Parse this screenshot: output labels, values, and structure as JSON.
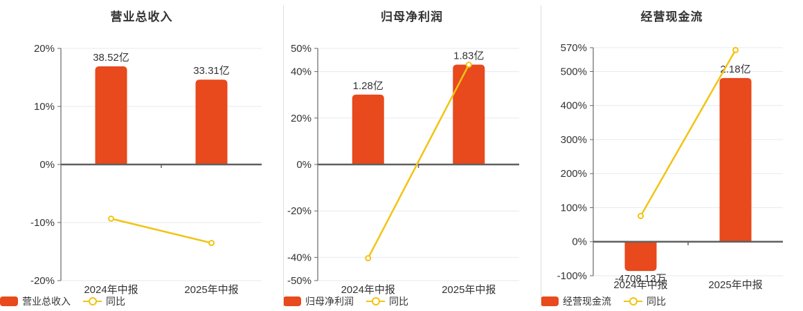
{
  "colors": {
    "bg": "#ffffff",
    "bar": "#e8491d",
    "line": "#f2c311",
    "grid": "#e6e9f1",
    "axis": "#666666",
    "zero_axis": "#5f5f5f",
    "text": "#333333",
    "divider": "#dddddd"
  },
  "chart_data": [
    {
      "type": "combo-bar-line",
      "title": "营业总收入",
      "categories": [
        "2024年中报",
        "2025年中报"
      ],
      "series": [
        {
          "name": "营业总收入",
          "type": "bar",
          "unit": "亿",
          "values": [
            38.52,
            33.31
          ],
          "value_labels": [
            "38.52亿",
            "33.31亿"
          ],
          "display_axis_pct": [
            16.9,
            14.62
          ],
          "label_position": [
            "above",
            "above"
          ]
        },
        {
          "name": "同比",
          "type": "line",
          "unit": "%",
          "values": [
            -9.33,
            -13.52
          ]
        }
      ],
      "y_axis": {
        "unit": "%",
        "min": -20,
        "max": 20,
        "tick_values": [
          20,
          10,
          0,
          -10,
          -20
        ],
        "tick_labels": [
          "20%",
          "10%",
          "0%",
          "-10%",
          "-20%"
        ]
      },
      "grid": true,
      "legend_position": "bottom",
      "legend": [
        "营业总收入",
        "同比"
      ]
    },
    {
      "type": "combo-bar-line",
      "title": "归母净利润",
      "categories": [
        "2024年中报",
        "2025年中报"
      ],
      "series": [
        {
          "name": "归母净利润",
          "type": "bar",
          "unit": "亿",
          "values": [
            1.28,
            1.83
          ],
          "value_labels": [
            "1.28亿",
            "1.83亿"
          ],
          "display_axis_pct": [
            30.1,
            43.0
          ],
          "label_position": [
            "above",
            "above"
          ]
        },
        {
          "name": "同比",
          "type": "line",
          "unit": "%",
          "values": [
            -40.35,
            42.97
          ]
        }
      ],
      "y_axis": {
        "unit": "%",
        "min": -50,
        "max": 50,
        "tick_values": [
          50,
          40,
          20,
          0,
          -20,
          -40,
          -50
        ],
        "tick_labels": [
          "50%",
          "40%",
          "20%",
          "0%",
          "-20%",
          "-40%",
          "-50%"
        ]
      },
      "grid": true,
      "legend_position": "bottom",
      "legend": [
        "归母净利润",
        "同比"
      ]
    },
    {
      "type": "combo-bar-line",
      "title": "经营现金流",
      "categories": [
        "2024年中报",
        "2025年中报"
      ],
      "series": [
        {
          "name": "经营现金流",
          "type": "bar",
          "unit": "亿",
          "values": [
            -0.470813,
            2.18
          ],
          "value_labels": [
            "-4708.13万",
            "2.18亿"
          ],
          "display_axis_pct": [
            -86,
            481
          ],
          "label_position": [
            "below",
            "above"
          ]
        },
        {
          "name": "同比",
          "type": "line",
          "unit": "%",
          "values": [
            75.5,
            563.07
          ]
        }
      ],
      "y_axis": {
        "unit": "%",
        "min": -100,
        "max": 570,
        "tick_values": [
          570,
          500,
          400,
          300,
          200,
          100,
          0,
          -100
        ],
        "tick_labels": [
          "570%",
          "500%",
          "400%",
          "300%",
          "200%",
          "100%",
          "0%",
          "-100%"
        ]
      },
      "grid": true,
      "legend_position": "bottom",
      "legend": [
        "经营现金流",
        "同比"
      ]
    }
  ]
}
